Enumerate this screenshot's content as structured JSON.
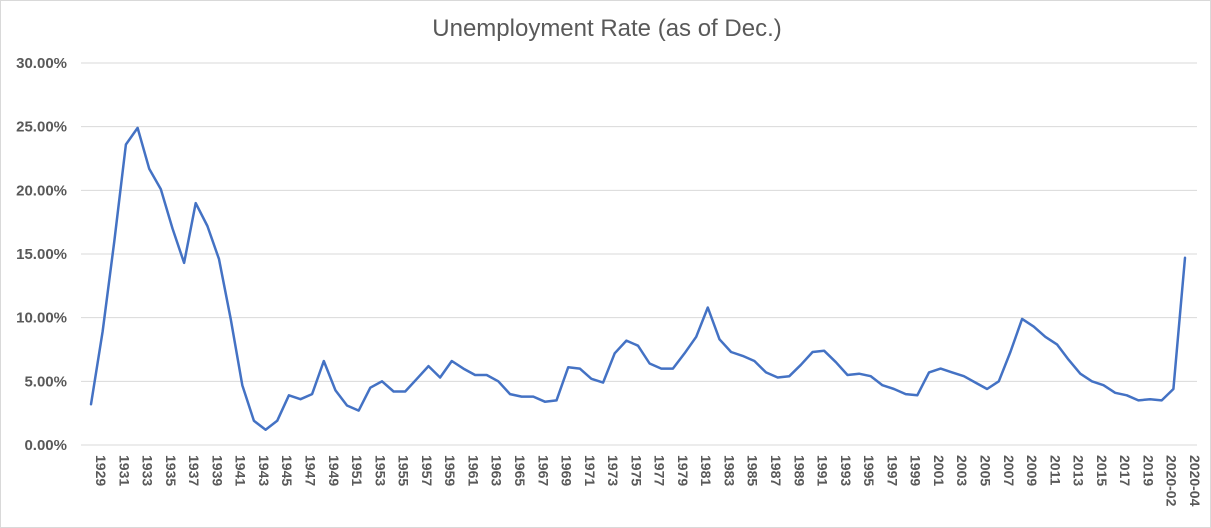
{
  "chart_data": {
    "type": "line",
    "title": "Unemployment Rate (as of Dec.)",
    "xlabel": "",
    "ylabel": "",
    "ylim": [
      0,
      0.3
    ],
    "yticks": [
      0,
      0.05,
      0.1,
      0.15,
      0.2,
      0.25,
      0.3
    ],
    "ytick_labels": [
      "0.00%",
      "5.00%",
      "10.00%",
      "15.00%",
      "20.00%",
      "25.00%",
      "30.00%"
    ],
    "grid": true,
    "legend": "none",
    "line_color": "#4472C4",
    "x": [
      "1929",
      "1930",
      "1931",
      "1932",
      "1933",
      "1934",
      "1935",
      "1936",
      "1937",
      "1938",
      "1939",
      "1940",
      "1941",
      "1942",
      "1943",
      "1944",
      "1945",
      "1946",
      "1947",
      "1948",
      "1949",
      "1950",
      "1951",
      "1952",
      "1953",
      "1954",
      "1955",
      "1956",
      "1957",
      "1958",
      "1959",
      "1960",
      "1961",
      "1962",
      "1963",
      "1964",
      "1965",
      "1966",
      "1967",
      "1968",
      "1969",
      "1970",
      "1971",
      "1972",
      "1973",
      "1974",
      "1975",
      "1976",
      "1977",
      "1978",
      "1979",
      "1980",
      "1981",
      "1982",
      "1983",
      "1984",
      "1985",
      "1986",
      "1987",
      "1988",
      "1989",
      "1990",
      "1991",
      "1992",
      "1993",
      "1994",
      "1995",
      "1996",
      "1997",
      "1998",
      "1999",
      "2000",
      "2001",
      "2002",
      "2003",
      "2004",
      "2005",
      "2006",
      "2007",
      "2008",
      "2009",
      "2010",
      "2011",
      "2012",
      "2013",
      "2014",
      "2015",
      "2016",
      "2017",
      "2018",
      "2019",
      "2020-01",
      "2020-02",
      "2020-03",
      "2020-04"
    ],
    "x_tick_labels": [
      "1929",
      "1931",
      "1933",
      "1935",
      "1937",
      "1939",
      "1941",
      "1943",
      "1945",
      "1947",
      "1949",
      "1951",
      "1953",
      "1955",
      "1957",
      "1959",
      "1961",
      "1963",
      "1965",
      "1967",
      "1969",
      "1971",
      "1973",
      "1975",
      "1977",
      "1979",
      "1981",
      "1983",
      "1985",
      "1987",
      "1989",
      "1991",
      "1993",
      "1995",
      "1997",
      "1999",
      "2001",
      "2003",
      "2005",
      "2007",
      "2009",
      "2011",
      "2013",
      "2015",
      "2017",
      "2019",
      "2020-02",
      "2020-04"
    ],
    "series": [
      {
        "values": [
          0.032,
          0.089,
          0.16,
          0.236,
          0.249,
          0.217,
          0.201,
          0.17,
          0.143,
          0.19,
          0.172,
          0.146,
          0.099,
          0.047,
          0.019,
          0.012,
          0.019,
          0.039,
          0.036,
          0.04,
          0.066,
          0.043,
          0.031,
          0.027,
          0.045,
          0.05,
          0.042,
          0.042,
          0.052,
          0.062,
          0.053,
          0.066,
          0.06,
          0.055,
          0.055,
          0.05,
          0.04,
          0.038,
          0.038,
          0.034,
          0.035,
          0.061,
          0.06,
          0.052,
          0.049,
          0.072,
          0.082,
          0.078,
          0.064,
          0.06,
          0.06,
          0.072,
          0.085,
          0.108,
          0.083,
          0.073,
          0.07,
          0.066,
          0.057,
          0.053,
          0.054,
          0.063,
          0.073,
          0.074,
          0.065,
          0.055,
          0.056,
          0.054,
          0.047,
          0.044,
          0.04,
          0.039,
          0.057,
          0.06,
          0.057,
          0.054,
          0.049,
          0.044,
          0.05,
          0.073,
          0.099,
          0.093,
          0.085,
          0.079,
          0.067,
          0.056,
          0.05,
          0.047,
          0.041,
          0.039,
          0.035,
          0.036,
          0.035,
          0.044,
          0.147
        ]
      }
    ]
  }
}
